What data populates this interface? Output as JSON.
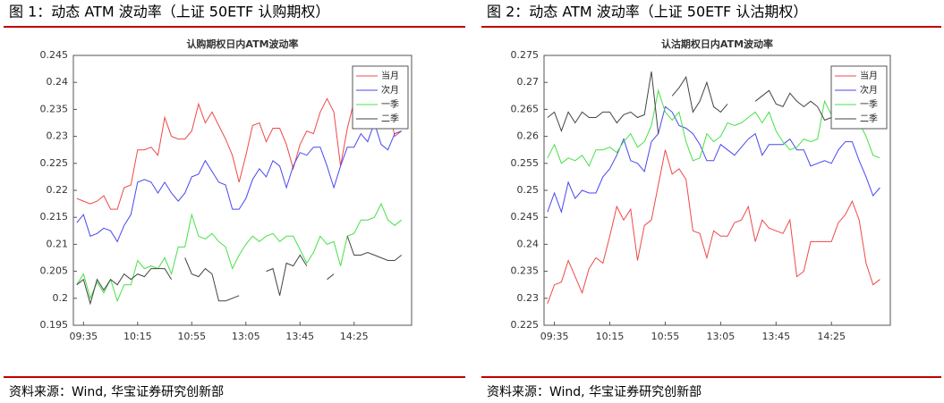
{
  "chart_data": [
    {
      "type": "line",
      "caption": "图 1：动态 ATM 波动率（上证 50ETF 认购期权）",
      "title": "认购期权日内ATM波动率",
      "source": "资料来源：Wind, 华宝证券研究创新部",
      "categories": [
        null,
        "09:35",
        null,
        null,
        null,
        null,
        null,
        null,
        null,
        "10:15",
        null,
        null,
        null,
        null,
        null,
        null,
        null,
        "10:55",
        null,
        null,
        null,
        null,
        null,
        null,
        null,
        "13:05",
        null,
        null,
        null,
        null,
        null,
        null,
        null,
        "13:45",
        null,
        null,
        null,
        null,
        null,
        null,
        null,
        "14:25",
        null,
        null,
        null,
        null,
        null,
        null,
        null
      ],
      "ylim": [
        0.195,
        0.245
      ],
      "yticks": [
        0.195,
        0.2,
        0.205,
        0.21,
        0.215,
        0.22,
        0.225,
        0.23,
        0.235,
        0.24,
        0.245
      ],
      "legend": "upper right",
      "series": [
        {
          "name": "当月",
          "color": "#f04848",
          "values": [
            0.2185,
            0.218,
            0.2175,
            0.218,
            0.219,
            0.2165,
            0.2165,
            0.2205,
            0.221,
            0.2275,
            0.2275,
            0.228,
            0.2265,
            0.2335,
            0.23,
            0.2295,
            0.2295,
            0.231,
            0.236,
            0.2325,
            0.2345,
            0.232,
            0.2295,
            0.2265,
            0.2215,
            0.2265,
            0.232,
            0.2325,
            0.229,
            0.2315,
            0.2315,
            0.2285,
            0.224,
            0.2285,
            0.231,
            0.2305,
            0.2345,
            0.237,
            0.2345,
            0.2245,
            0.2315,
            0.2365,
            0.2345,
            0.2325,
            0.2335,
            0.2335,
            0.2365,
            0.23,
            0.231
          ]
        },
        {
          "name": "次月",
          "color": "#4848f0",
          "values": [
            0.214,
            0.2155,
            0.2115,
            0.212,
            0.213,
            0.2125,
            0.2105,
            0.2135,
            0.2155,
            0.2215,
            0.222,
            0.2215,
            0.2195,
            0.2215,
            0.2195,
            0.218,
            0.2195,
            0.2225,
            0.223,
            0.2255,
            0.2235,
            0.2215,
            0.221,
            0.2165,
            0.2165,
            0.2185,
            0.222,
            0.224,
            0.2225,
            0.2255,
            0.2245,
            0.2205,
            0.2245,
            0.227,
            0.2265,
            0.228,
            0.228,
            0.2245,
            0.2205,
            0.2245,
            0.228,
            0.228,
            0.2305,
            0.229,
            0.2325,
            0.2285,
            0.2275,
            0.2305,
            0.231
          ]
        },
        {
          "name": "一季",
          "color": "#48e048",
          "values": [
            0.2025,
            0.2045,
            0.2,
            0.203,
            0.201,
            0.2035,
            0.1995,
            0.2025,
            0.2025,
            0.207,
            0.2055,
            0.206,
            0.2055,
            0.2075,
            0.2045,
            0.2095,
            0.2095,
            0.2155,
            0.2115,
            0.211,
            0.212,
            0.2105,
            0.2095,
            0.2055,
            0.208,
            0.21,
            0.2115,
            0.2105,
            0.2115,
            0.212,
            0.2105,
            0.2115,
            0.2115,
            0.209,
            0.2065,
            0.2085,
            0.2115,
            0.21,
            0.2105,
            0.206,
            0.2115,
            0.212,
            0.2145,
            0.2145,
            0.215,
            0.2175,
            0.2145,
            0.2135,
            0.2145
          ]
        },
        {
          "name": "二季",
          "color": "#444444",
          "values": [
            0.2025,
            0.2035,
            0.199,
            0.2035,
            0.2015,
            0.2035,
            0.2025,
            0.2045,
            0.2035,
            0.2045,
            0.204,
            0.2055,
            0.2055,
            0.2055,
            0.2035,
            null,
            0.2075,
            0.2045,
            0.204,
            0.2055,
            0.2045,
            0.1995,
            0.1995,
            0.2,
            0.2005,
            null,
            null,
            null,
            0.205,
            0.2055,
            0.2005,
            0.2065,
            0.206,
            0.208,
            0.206,
            null,
            null,
            0.2035,
            0.2045,
            null,
            0.2115,
            0.208,
            0.208,
            0.2085,
            0.208,
            0.2075,
            0.207,
            0.207,
            0.208
          ]
        }
      ]
    },
    {
      "type": "line",
      "caption": "图 2：动态 ATM 波动率（上证 50ETF 认沽期权）",
      "title": "认沽期权日内ATM波动率",
      "source": "资料来源：Wind, 华宝证券研究创新部",
      "categories": [
        null,
        "09:35",
        null,
        null,
        null,
        null,
        null,
        null,
        null,
        "10:15",
        null,
        null,
        null,
        null,
        null,
        null,
        null,
        "10:55",
        null,
        null,
        null,
        null,
        null,
        null,
        null,
        "13:05",
        null,
        null,
        null,
        null,
        null,
        null,
        null,
        "13:45",
        null,
        null,
        null,
        null,
        null,
        null,
        null,
        "14:25",
        null,
        null,
        null,
        null,
        null,
        null,
        null
      ],
      "ylim": [
        0.225,
        0.275
      ],
      "yticks": [
        0.225,
        0.23,
        0.235,
        0.24,
        0.245,
        0.25,
        0.255,
        0.26,
        0.265,
        0.27,
        0.275
      ],
      "legend": "upper right",
      "series": [
        {
          "name": "当月",
          "color": "#f04848",
          "values": [
            0.229,
            0.2325,
            0.233,
            0.237,
            0.234,
            0.231,
            0.2355,
            0.2375,
            0.2365,
            0.2415,
            0.247,
            0.2445,
            0.2465,
            0.237,
            0.2435,
            0.2445,
            0.251,
            0.2575,
            0.253,
            0.254,
            0.252,
            0.2425,
            0.242,
            0.2375,
            0.2425,
            0.2415,
            0.2415,
            0.244,
            0.2445,
            0.247,
            0.2405,
            0.2445,
            0.243,
            0.2425,
            0.242,
            0.2445,
            0.234,
            0.235,
            0.2405,
            0.2405,
            0.2405,
            0.2405,
            0.244,
            0.2455,
            0.248,
            0.2445,
            0.2365,
            0.2325,
            0.2335
          ]
        },
        {
          "name": "次月",
          "color": "#4848f0",
          "values": [
            0.246,
            0.2495,
            0.246,
            0.2515,
            0.2485,
            0.25,
            0.2495,
            0.2495,
            0.2525,
            0.254,
            0.2565,
            0.2595,
            0.2555,
            0.255,
            0.2535,
            0.259,
            0.2605,
            0.2655,
            0.2645,
            0.262,
            0.2615,
            0.2605,
            0.2585,
            0.2555,
            0.2555,
            0.2585,
            0.2575,
            0.2565,
            0.258,
            0.2595,
            0.2605,
            0.2565,
            0.2585,
            0.2585,
            0.2585,
            0.2595,
            0.2575,
            0.2575,
            0.2545,
            0.255,
            0.2555,
            0.255,
            0.2575,
            0.259,
            0.259,
            0.2555,
            0.2525,
            0.249,
            0.2505
          ]
        },
        {
          "name": "一季",
          "color": "#48e048",
          "values": [
            0.256,
            0.2585,
            0.255,
            0.256,
            0.2555,
            0.2565,
            0.2545,
            0.2575,
            0.2575,
            0.258,
            0.257,
            0.259,
            0.2605,
            0.258,
            0.259,
            0.262,
            0.2685,
            0.2645,
            0.263,
            0.2645,
            0.259,
            0.2555,
            0.256,
            0.2605,
            0.259,
            0.26,
            0.2625,
            0.262,
            0.2625,
            0.2635,
            0.2645,
            0.2625,
            0.2645,
            0.261,
            0.259,
            0.2575,
            0.258,
            0.2595,
            0.259,
            0.2595,
            0.2665,
            0.264,
            0.2645,
            0.2625,
            0.264,
            0.2625,
            0.26,
            0.2565,
            0.256
          ]
        },
        {
          "name": "二季",
          "color": "#444444",
          "values": [
            0.2635,
            0.2645,
            0.261,
            0.2645,
            0.2625,
            0.2645,
            0.2635,
            0.2635,
            0.2645,
            0.2645,
            0.2625,
            0.264,
            0.2645,
            0.2635,
            0.264,
            0.272,
            0.2605,
            null,
            0.2675,
            0.269,
            0.271,
            0.2645,
            0.2665,
            0.27,
            0.2655,
            0.2645,
            0.266,
            null,
            null,
            null,
            0.2665,
            0.2675,
            0.2685,
            0.266,
            0.2655,
            0.268,
            0.2665,
            0.2655,
            0.2665,
            0.2655,
            0.263,
            0.2635,
            null,
            null,
            null,
            null,
            null,
            null,
            null
          ]
        }
      ]
    }
  ]
}
